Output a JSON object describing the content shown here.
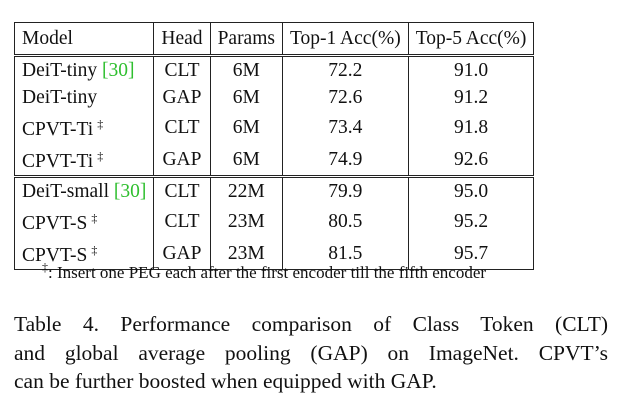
{
  "table": {
    "header": [
      "Model",
      "Head",
      "Params",
      "Top-1 Acc(%)",
      "Top-5 Acc(%)"
    ],
    "groups": [
      [
        {
          "model": "DeiT-tiny",
          "cite": "[30]",
          "head": "CLT",
          "params": "6M",
          "top1": "72.2",
          "top5": "91.0",
          "bold": false
        },
        {
          "model": "DeiT-tiny",
          "head": "GAP",
          "params": "6M",
          "top1": "72.6",
          "top5": "91.2",
          "bold": false
        },
        {
          "model": "CPVT-Ti",
          "mark": "‡",
          "head": "CLT",
          "params": "6M",
          "top1": "73.4",
          "top5": "91.8",
          "bold": false
        },
        {
          "model": "CPVT-Ti",
          "mark": "‡",
          "head": "GAP",
          "params": "6M",
          "top1": "74.9",
          "top5": "92.6",
          "bold": true
        }
      ],
      [
        {
          "model": "DeiT-small",
          "cite": "[30]",
          "head": "CLT",
          "params": "22M",
          "top1": "79.9",
          "top5": "95.0",
          "bold": false
        },
        {
          "model": "CPVT-S",
          "mark": "‡",
          "head": "CLT",
          "params": "23M",
          "top1": "80.5",
          "top5": "95.2",
          "bold": false
        },
        {
          "model": "CPVT-S",
          "mark": "‡",
          "head": "GAP",
          "params": "23M",
          "top1": "81.5",
          "top5": "95.7",
          "bold": true
        }
      ]
    ],
    "footnote": {
      "mark": "‡",
      "text": ": Insert one PEG each after the first encoder till the fifth encoder"
    }
  },
  "caption": {
    "lines": [
      "Table 4.  Performance comparison of Class Token (CLT)",
      "and global average pooling (GAP) on ImageNet.  CPVT’s",
      "can be further boosted when equipped with GAP."
    ]
  }
}
